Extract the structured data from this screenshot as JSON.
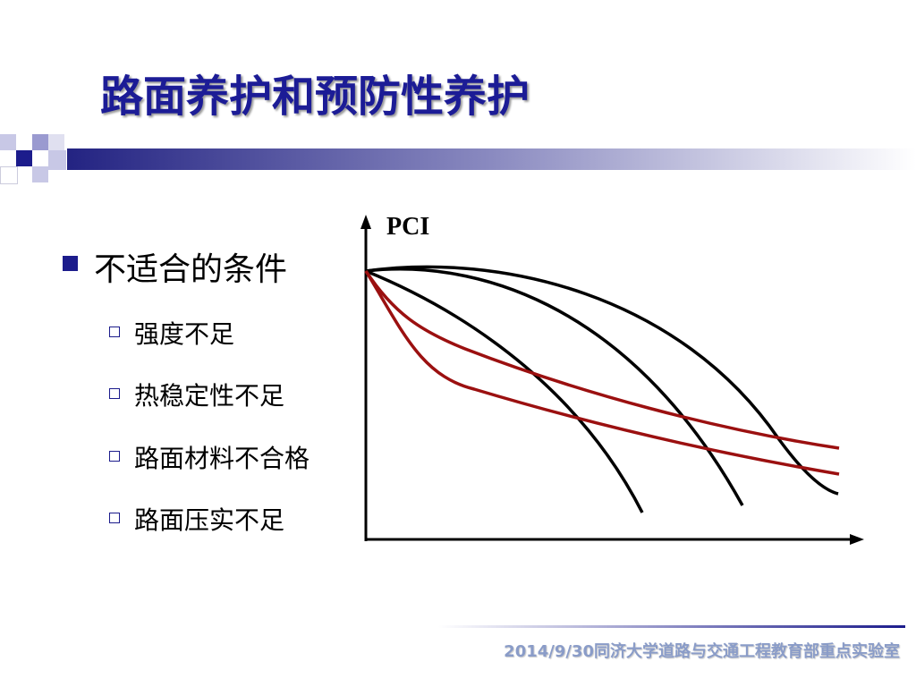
{
  "title": "路面养护和预防性养护",
  "bullet": {
    "text": "不适合的条件",
    "items": [
      "强度不足",
      "热稳定性不足",
      "路面材料不合格",
      "路面压实不足"
    ]
  },
  "diagram": {
    "y_label": "PCI"
  },
  "footer": {
    "date": "2014/9/30",
    "org": "同济大学道路与交通工程教育部重点实验室"
  }
}
